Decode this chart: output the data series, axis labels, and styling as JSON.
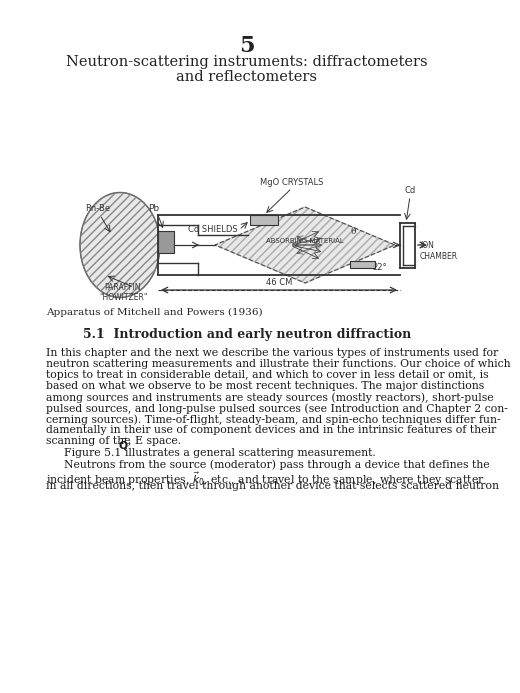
{
  "chapter_number": "5",
  "chapter_title_line1": "Neutron-scattering instruments: diffractometers",
  "chapter_title_line2": "and reflectometers",
  "section_title": "5.1  Introduction and early neutron diffraction",
  "figure_caption": "Apparatus of Mitchell and Powers (1936)",
  "lines_p1": [
    "In this chapter and the next we describe the various types of instruments used for",
    "neutron scattering measurements and illustrate their functions. Our choice of which",
    "topics to treat in considerable detail, and which to cover in less detail or omit, is",
    "based on what we observe to be most recent techniques. The major distinctions",
    "among sources and instruments are steady sources (mostly reactors), short-pulse",
    "pulsed sources, and long-pulse pulsed sources (see Introduction and Chapter 2 con-",
    "cerning sources). Time-of-flight, steady-beam, and spin-echo techniques differ fun-",
    "damentally in their use of component devices and in the intrinsic features of their"
  ],
  "line_qspace": "scanning of the ",
  "line_qspace2": ", E space.",
  "line_p2": "Figure 5.1 illustrates a general scattering measurement.",
  "lines_p3": [
    "Neutrons from the source (moderator) pass through a device that defines the",
    "incident beam properties, $\\vec{k}_0$, etc., and travel to the sample, where they scatter",
    "in all directions, then travel through another device that selects scattered neutron"
  ],
  "bg_color": "#ffffff",
  "text_color": "#222222"
}
